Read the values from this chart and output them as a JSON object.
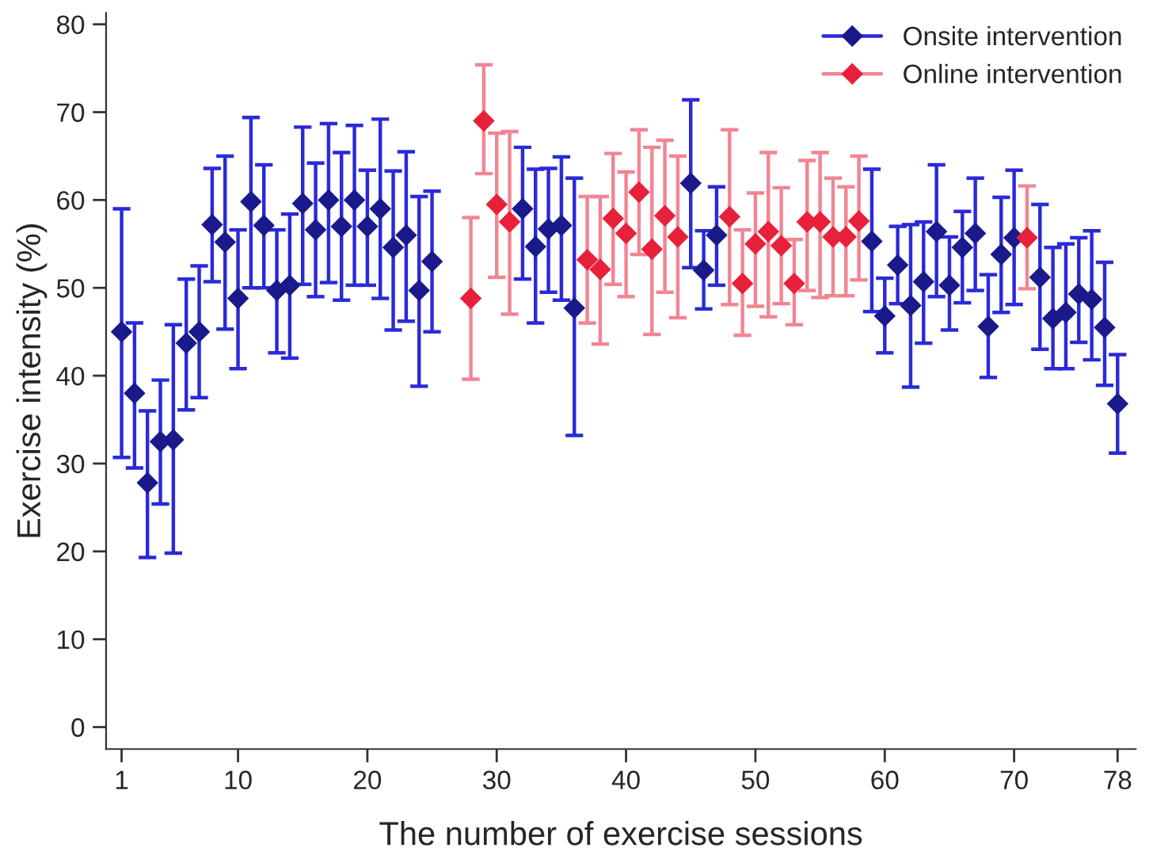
{
  "chart_data": {
    "type": "scatter",
    "xlabel": "The number of exercise sessions",
    "ylabel": "Exercise intensity (%)",
    "xlim": [
      -0.2,
      79.4
    ],
    "ylim": [
      -2.5,
      81.3
    ],
    "xticks": [
      1,
      10,
      20,
      30,
      40,
      50,
      60,
      70,
      78
    ],
    "yticks": [
      0,
      10,
      20,
      30,
      40,
      50,
      60,
      70,
      80
    ],
    "grid": false,
    "legend": "top right",
    "marker": "diamond",
    "series": [
      {
        "name": "Onsite intervention",
        "color": "#1a1a8c",
        "x": [
          1,
          2,
          3,
          4,
          5,
          6,
          7,
          8,
          9,
          10,
          11,
          12,
          13,
          14,
          15,
          16,
          17,
          18,
          19,
          20,
          21,
          22,
          23,
          24,
          25,
          32,
          33,
          34,
          35,
          36,
          45,
          46,
          47,
          59,
          60,
          61,
          62,
          63,
          64,
          65,
          66,
          67,
          68,
          69,
          70,
          72,
          73,
          74,
          75,
          76,
          77,
          78
        ],
        "values": [
          45,
          38,
          27.8,
          32.5,
          32.7,
          43.7,
          45,
          57.2,
          55.2,
          48.8,
          59.8,
          57.1,
          49.7,
          50.3,
          59.6,
          56.6,
          60,
          57,
          60,
          57,
          59,
          54.6,
          56,
          49.7,
          53,
          59,
          54.7,
          56.7,
          57.1,
          47.7,
          61.9,
          52,
          56,
          55.3,
          46.8,
          52.6,
          48,
          50.7,
          56.4,
          50.3,
          54.6,
          56.2,
          45.6,
          53.8,
          55.7,
          51.2,
          46.5,
          47.2,
          49.3,
          48.7,
          45.5,
          36.8
        ],
        "errors": [
          [
            30.7,
            59
          ],
          [
            29.5,
            46
          ],
          [
            19.3,
            36
          ],
          [
            25.4,
            39.5
          ],
          [
            19.8,
            45.8
          ],
          [
            36.1,
            51
          ],
          [
            37.5,
            52.5
          ],
          [
            50.7,
            63.6
          ],
          [
            45.3,
            65
          ],
          [
            40.8,
            56.6
          ],
          [
            50,
            69.4
          ],
          [
            50,
            64
          ],
          [
            42.6,
            56.6
          ],
          [
            42,
            58.4
          ],
          [
            50.4,
            68.3
          ],
          [
            49,
            64.2
          ],
          [
            50.6,
            68.7
          ],
          [
            48.6,
            65.4
          ],
          [
            50.3,
            68.5
          ],
          [
            50.3,
            63.4
          ],
          [
            48.8,
            69.2
          ],
          [
            45.2,
            63.3
          ],
          [
            46.2,
            65.5
          ],
          [
            38.8,
            60.4
          ],
          [
            45,
            61
          ],
          [
            51,
            66
          ],
          [
            46,
            63.5
          ],
          [
            49.5,
            63.6
          ],
          [
            48.6,
            64.9
          ],
          [
            33.2,
            62.5
          ],
          [
            52.3,
            71.4
          ],
          [
            47.6,
            56.5
          ],
          [
            50.3,
            61.5
          ],
          [
            47.3,
            63.5
          ],
          [
            42.6,
            51.1
          ],
          [
            48.2,
            57
          ],
          [
            38.7,
            57.2
          ],
          [
            43.7,
            57.5
          ],
          [
            49,
            64
          ],
          [
            45.2,
            55.8
          ],
          [
            48.3,
            58.7
          ],
          [
            49.7,
            62.5
          ],
          [
            39.8,
            51.5
          ],
          [
            47.2,
            60.3
          ],
          [
            48.1,
            63.4
          ],
          [
            43,
            59.5
          ],
          [
            40.8,
            54.6
          ],
          [
            40.8,
            55
          ],
          [
            43.8,
            55.7
          ],
          [
            41.8,
            56.5
          ],
          [
            38.9,
            52.9
          ],
          [
            31.2,
            42.4
          ]
        ]
      },
      {
        "name": "Online intervention",
        "color": "#e8213a",
        "x": [
          28,
          29,
          30,
          31,
          37,
          38,
          39,
          40,
          41,
          42,
          43,
          44,
          48,
          49,
          50,
          51,
          52,
          53,
          54,
          55,
          56,
          57,
          58,
          71
        ],
        "values": [
          48.8,
          69,
          59.5,
          57.5,
          53.2,
          52.1,
          57.9,
          56.2,
          60.9,
          54.4,
          58.2,
          55.8,
          58.1,
          50.5,
          55,
          56.4,
          54.8,
          50.5,
          57.5,
          57.5,
          55.8,
          55.8,
          57.6,
          55.7
        ],
        "errors": [
          [
            39.6,
            58
          ],
          [
            63,
            75.4
          ],
          [
            51.2,
            67.6
          ],
          [
            47,
            67.8
          ],
          [
            46,
            60.4
          ],
          [
            43.6,
            60.4
          ],
          [
            50.4,
            65.3
          ],
          [
            49,
            63.2
          ],
          [
            53.8,
            68
          ],
          [
            44.7,
            66
          ],
          [
            49.5,
            66.8
          ],
          [
            46.6,
            65
          ],
          [
            48.1,
            68
          ],
          [
            44.6,
            56.6
          ],
          [
            47.9,
            60.8
          ],
          [
            46.7,
            65.4
          ],
          [
            48.2,
            61.4
          ],
          [
            45.8,
            55.5
          ],
          [
            49.7,
            64.5
          ],
          [
            48.9,
            65.4
          ],
          [
            49.1,
            62.5
          ],
          [
            49.1,
            61.5
          ],
          [
            50.9,
            65
          ],
          [
            49.9,
            61.6
          ]
        ]
      }
    ]
  }
}
